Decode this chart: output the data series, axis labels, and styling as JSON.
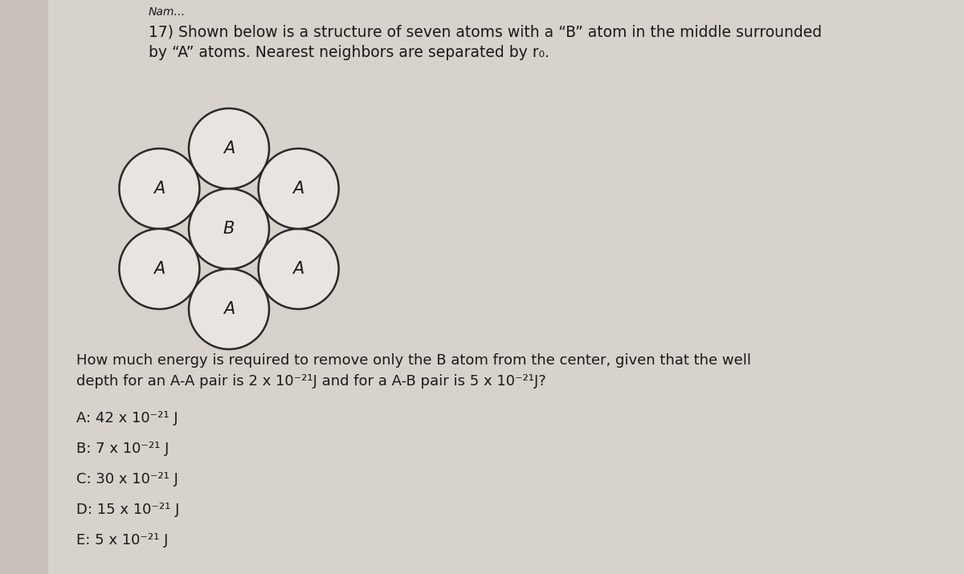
{
  "background_color": "#c8c0b8",
  "paper_color": "#d8d2cc",
  "title_number": "17)",
  "title_line1": "Shown below is a structure of seven atoms with a “B” atom in the middle surrounded",
  "title_line2": "by “A” atoms. Nearest neighbors are separated by r₀.",
  "question_line1": "How much energy is required to remove only the B atom from the center, given that the well",
  "question_line2": "depth for an A-A pair is 2 x 10⁻²¹J and for a A-B pair is 5 x 10⁻²¹J?",
  "choices": [
    "A: 42 x 10⁻²¹ J",
    "B: 7 x 10⁻²¹ J",
    "C: 30 x 10⁻²¹ J",
    "D: 15 x 10⁻²¹ J",
    "E: 5 x 10⁻²¹ J"
  ],
  "text_color": "#1a1a1a",
  "circle_color": "#2a2a2a",
  "circle_linewidth": 1.8,
  "font_size_title": 13.5,
  "font_size_label": 15,
  "font_size_question": 13,
  "font_size_choices": 13,
  "name_label": "Nam…"
}
